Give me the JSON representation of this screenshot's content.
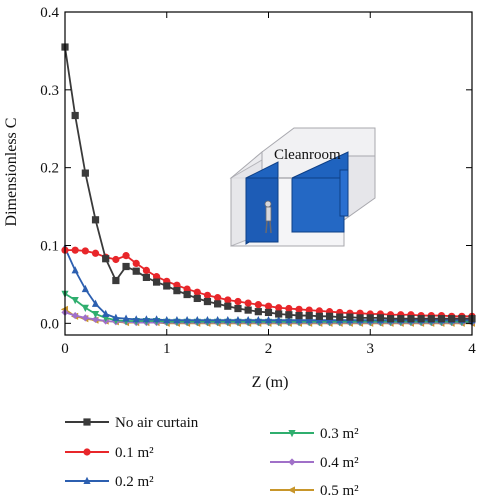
{
  "chart_data": {
    "type": "line",
    "xlabel": "Z (m)",
    "ylabel": "Dimensionless C",
    "xlim": [
      0,
      4
    ],
    "ylim": [
      -0.015,
      0.4
    ],
    "x_ticks": [
      "0",
      "1",
      "2",
      "3",
      "4"
    ],
    "y_ticks": [
      "0.0",
      "0.1",
      "0.2",
      "0.3",
      "0.4"
    ],
    "grid": false,
    "legend_position": "bottom",
    "inset_label": "Cleanroom",
    "series": [
      {
        "name": "No air curtain",
        "color": "#3a3a3a",
        "marker": "square",
        "x": [
          0,
          0.1,
          0.2,
          0.3,
          0.4,
          0.5,
          0.6,
          0.7,
          0.8,
          0.9,
          1.0,
          1.1,
          1.2,
          1.3,
          1.4,
          1.5,
          1.6,
          1.7,
          1.8,
          1.9,
          2.0,
          2.1,
          2.2,
          2.3,
          2.4,
          2.5,
          2.6,
          2.7,
          2.8,
          2.9,
          3.0,
          3.1,
          3.2,
          3.3,
          3.4,
          3.5,
          3.6,
          3.7,
          3.8,
          3.9,
          4.0
        ],
        "y": [
          0.355,
          0.267,
          0.193,
          0.133,
          0.083,
          0.055,
          0.073,
          0.067,
          0.059,
          0.053,
          0.048,
          0.042,
          0.037,
          0.032,
          0.028,
          0.025,
          0.022,
          0.019,
          0.017,
          0.015,
          0.014,
          0.012,
          0.011,
          0.01,
          0.01,
          0.009,
          0.009,
          0.008,
          0.008,
          0.007,
          0.007,
          0.007,
          0.006,
          0.006,
          0.006,
          0.006,
          0.006,
          0.006,
          0.006,
          0.006,
          0.006
        ]
      },
      {
        "name": "0.1 m²",
        "color": "#e8262a",
        "marker": "circle",
        "x": [
          0,
          0.1,
          0.2,
          0.3,
          0.4,
          0.5,
          0.6,
          0.7,
          0.8,
          0.9,
          1.0,
          1.1,
          1.2,
          1.3,
          1.4,
          1.5,
          1.6,
          1.7,
          1.8,
          1.9,
          2.0,
          2.1,
          2.2,
          2.3,
          2.4,
          2.5,
          2.6,
          2.7,
          2.8,
          2.9,
          3.0,
          3.1,
          3.2,
          3.3,
          3.4,
          3.5,
          3.6,
          3.7,
          3.8,
          3.9,
          4.0
        ],
        "y": [
          0.094,
          0.094,
          0.093,
          0.09,
          0.085,
          0.082,
          0.087,
          0.077,
          0.068,
          0.06,
          0.054,
          0.049,
          0.044,
          0.04,
          0.036,
          0.033,
          0.03,
          0.028,
          0.026,
          0.024,
          0.022,
          0.02,
          0.019,
          0.018,
          0.017,
          0.016,
          0.015,
          0.014,
          0.013,
          0.013,
          0.012,
          0.012,
          0.011,
          0.011,
          0.011,
          0.01,
          0.01,
          0.01,
          0.009,
          0.009,
          0.009
        ]
      },
      {
        "name": "0.2 m²",
        "color": "#2c5fb0",
        "marker": "triangle-up",
        "x": [
          0,
          0.1,
          0.2,
          0.3,
          0.4,
          0.5,
          0.6,
          0.7,
          0.8,
          0.9,
          1.0,
          1.1,
          1.2,
          1.3,
          1.4,
          1.5,
          1.6,
          1.7,
          1.8,
          1.9,
          2.0,
          2.1,
          2.2,
          2.3,
          2.4,
          2.5,
          2.6,
          2.7,
          2.8,
          2.9,
          3.0,
          3.1,
          3.2,
          3.3,
          3.4,
          3.5,
          3.6,
          3.7,
          3.8,
          3.9,
          4.0
        ],
        "y": [
          0.097,
          0.068,
          0.044,
          0.025,
          0.012,
          0.007,
          0.006,
          0.005,
          0.005,
          0.005,
          0.004,
          0.004,
          0.004,
          0.004,
          0.004,
          0.004,
          0.004,
          0.004,
          0.004,
          0.004,
          0.004,
          0.004,
          0.004,
          0.004,
          0.004,
          0.004,
          0.004,
          0.004,
          0.004,
          0.004,
          0.004,
          0.004,
          0.004,
          0.004,
          0.004,
          0.004,
          0.004,
          0.004,
          0.004,
          0.004,
          0.004
        ]
      },
      {
        "name": "0.3 m²",
        "color": "#2fae6e",
        "marker": "triangle-down",
        "x": [
          0,
          0.1,
          0.2,
          0.3,
          0.4,
          0.5,
          0.6,
          0.7,
          0.8,
          0.9,
          1.0,
          1.1,
          1.2,
          1.3,
          1.4,
          1.5,
          1.6,
          1.7,
          1.8,
          1.9,
          2.0,
          2.1,
          2.2,
          2.3,
          2.4,
          2.5,
          2.6,
          2.7,
          2.8,
          2.9,
          3.0,
          3.1,
          3.2,
          3.3,
          3.4,
          3.5,
          3.6,
          3.7,
          3.8,
          3.9,
          4.0
        ],
        "y": [
          0.038,
          0.03,
          0.02,
          0.012,
          0.007,
          0.004,
          0.003,
          0.003,
          0.003,
          0.003,
          0.002,
          0.002,
          0.002,
          0.002,
          0.002,
          0.002,
          0.002,
          0.002,
          0.002,
          0.002,
          0.002,
          0.002,
          0.002,
          0.002,
          0.002,
          0.002,
          0.002,
          0.002,
          0.002,
          0.002,
          0.002,
          0.002,
          0.002,
          0.002,
          0.002,
          0.002,
          0.002,
          0.002,
          0.002,
          0.002,
          0.002
        ]
      },
      {
        "name": "0.4 m²",
        "color": "#a070c8",
        "marker": "diamond",
        "x": [
          0,
          0.1,
          0.2,
          0.3,
          0.4,
          0.5,
          0.6,
          0.7,
          0.8,
          0.9,
          1.0,
          1.1,
          1.2,
          1.3,
          1.4,
          1.5,
          1.6,
          1.7,
          1.8,
          1.9,
          2.0,
          2.1,
          2.2,
          2.3,
          2.4,
          2.5,
          2.6,
          2.7,
          2.8,
          2.9,
          3.0,
          3.1,
          3.2,
          3.3,
          3.4,
          3.5,
          3.6,
          3.7,
          3.8,
          3.9,
          4.0
        ],
        "y": [
          0.014,
          0.01,
          0.007,
          0.005,
          0.003,
          0.002,
          0.002,
          0.001,
          0.001,
          0.001,
          0.001,
          0.001,
          0.001,
          0.001,
          0.001,
          0.001,
          0.001,
          0.001,
          0.001,
          0.001,
          0.001,
          0.001,
          0.001,
          0.001,
          0.001,
          0.001,
          0.001,
          0.001,
          0.001,
          0.001,
          0.001,
          0.001,
          0.001,
          0.001,
          0.001,
          0.001,
          0.001,
          0.001,
          0.001,
          0.001,
          0.001
        ]
      },
      {
        "name": "0.5 m²",
        "color": "#c8962a",
        "marker": "triangle-left",
        "x": [
          0,
          0.1,
          0.2,
          0.3,
          0.4,
          0.5,
          0.6,
          0.7,
          0.8,
          0.9,
          1.0,
          1.1,
          1.2,
          1.3,
          1.4,
          1.5,
          1.6,
          1.7,
          1.8,
          1.9,
          2.0,
          2.1,
          2.2,
          2.3,
          2.4,
          2.5,
          2.6,
          2.7,
          2.8,
          2.9,
          3.0,
          3.1,
          3.2,
          3.3,
          3.4,
          3.5,
          3.6,
          3.7,
          3.8,
          3.9,
          4.0
        ],
        "y": [
          0.018,
          0.009,
          0.006,
          0.004,
          0.003,
          0.002,
          0.001,
          0.001,
          0.001,
          0.001,
          0.0,
          0.0,
          0.0,
          0.0,
          0.0,
          0.0,
          0.0,
          0.0,
          0.0,
          0.0,
          0.0,
          0.0,
          0.0,
          0.0,
          0.0,
          0.0,
          0.0,
          0.0,
          0.0,
          0.0,
          0.0,
          0.0,
          0.0,
          0.0,
          0.0,
          0.0,
          0.0,
          0.0,
          0.0,
          0.0,
          0.0
        ]
      }
    ]
  }
}
